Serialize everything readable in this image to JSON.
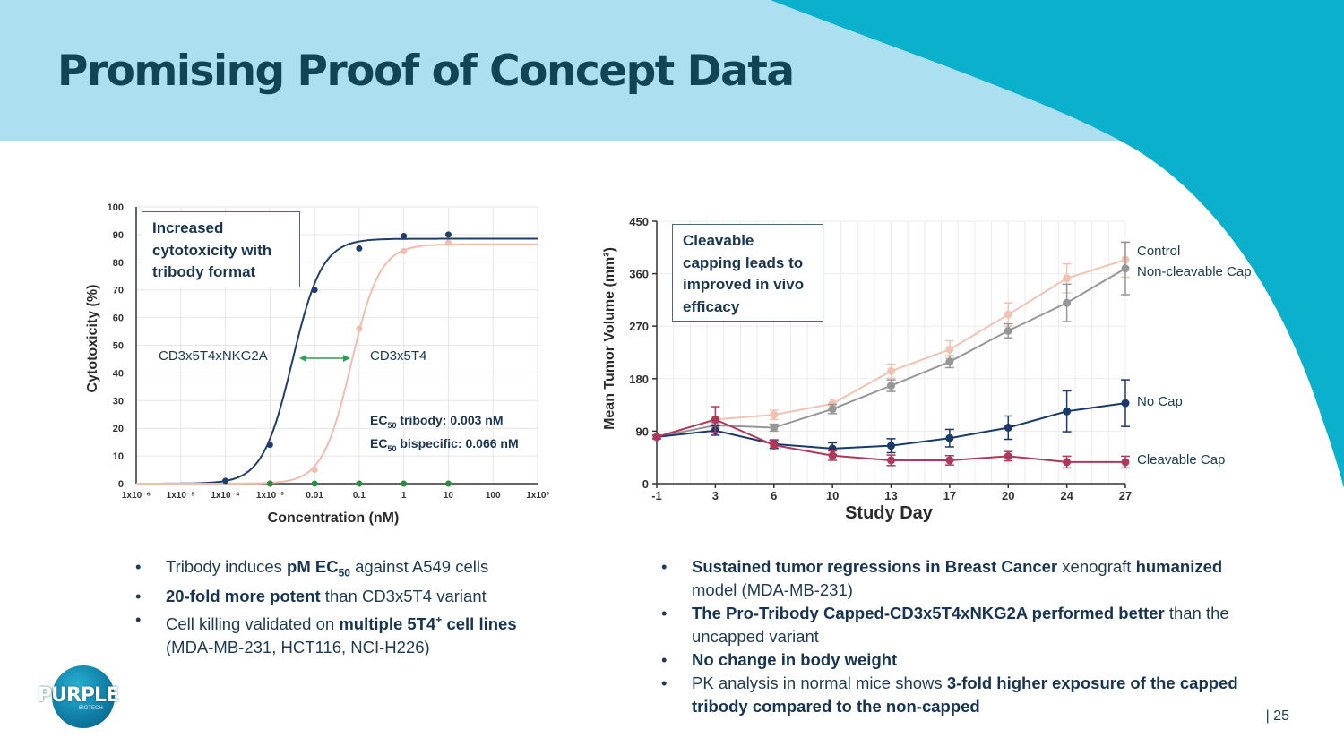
{
  "slide": {
    "title": "Promising Proof of Concept Data",
    "page_number": "| 25",
    "logo": {
      "text": "PURPLE",
      "subtext": "BIOTECH"
    },
    "colors": {
      "banner": "#acdff0",
      "accent_teal": "#0ab0cc",
      "title": "#0f4554"
    }
  },
  "left_panel": {
    "callout": [
      "Increased",
      "cytotoxicity with",
      "tribody format"
    ],
    "curve_labels": {
      "tribody": "CD3x5T4xNKG2A",
      "bispecific": "CD3x5T4"
    },
    "ec50": {
      "sub": "50",
      "tribody": "tribody: 0.003 nM",
      "bispecific": "bispecific: 0.066 nM",
      "prefix": "EC"
    },
    "bullets": [
      {
        "a": "Tribody induces ",
        "b": "pM EC",
        "c": "50",
        "d": " against A549 cells"
      },
      {
        "a": "20-fold more potent",
        "b": " than CD3x5T4 variant"
      },
      {
        "a": "Cell killing validated on ",
        "b": "multiple 5T4",
        "c": "+",
        "d": " cell lines",
        "e": "(MDA-MB-231, HCT116, NCI-H226)"
      }
    ]
  },
  "right_panel": {
    "callout": [
      "Cleavable",
      "capping leads to",
      "improved in vivo",
      "efficacy"
    ],
    "legend": {
      "control": "Control",
      "noncleavable": "Non-cleavable Cap",
      "nocap": "No Cap",
      "cleavable": "Cleavable Cap"
    },
    "bullets": [
      {
        "a": "Sustained tumor regressions in Breast Cancer",
        "b": " xenograft ",
        "c": "humanized",
        "d": "model (MDA-MB-231)"
      },
      {
        "a": "The Pro-Tribody Capped-CD3x5T4xNKG2A performed better",
        "b": " than the",
        "c": "uncapped variant"
      },
      {
        "a": "No change in body weight"
      },
      {
        "a": "PK analysis in normal mice shows ",
        "b": "3-fold higher exposure of the capped",
        "c": "tribody compared to the non-capped"
      }
    ]
  },
  "chart_data": [
    {
      "type": "scatter",
      "title": "",
      "xlabel": "Concentration (nM)",
      "ylabel": "Cytotoxicity (%)",
      "x_scale": "log",
      "xlim_log10": [
        -6,
        3
      ],
      "ylim": [
        0,
        100
      ],
      "x_ticks": [
        {
          "log": -6,
          "label": "1x10⁻⁶"
        },
        {
          "log": -5,
          "label": "1x10⁻⁵"
        },
        {
          "log": -4,
          "label": "1x10⁻⁴"
        },
        {
          "log": -3,
          "label": "1x10⁻³"
        },
        {
          "log": -2,
          "label": "0.01"
        },
        {
          "log": -1,
          "label": "0.1"
        },
        {
          "log": 0,
          "label": "1"
        },
        {
          "log": 1,
          "label": "10"
        },
        {
          "log": 2,
          "label": "100"
        },
        {
          "log": 3,
          "label": "1x10³"
        }
      ],
      "y_ticks": [
        0,
        10,
        20,
        30,
        40,
        50,
        60,
        70,
        80,
        90,
        100
      ],
      "series": [
        {
          "name": "CD3x5T4xNKG2A",
          "color": "#1f3f6a",
          "x_log": [
            -4,
            -3,
            -2,
            -1,
            0,
            1
          ],
          "values": [
            1,
            14,
            70,
            85,
            89.5,
            90
          ],
          "fit": {
            "bottom": 0,
            "top": 88.5,
            "log_ec50": -2.5,
            "hill": 1.3
          }
        },
        {
          "name": "CD3x5T4",
          "color": "#f0bcae",
          "x_log": [
            -3,
            -2,
            -1,
            0,
            1
          ],
          "values": [
            0,
            5,
            56,
            84,
            87
          ],
          "fit": {
            "bottom": 0,
            "top": 86.5,
            "log_ec50": -1.18,
            "hill": 1.35
          }
        },
        {
          "name": "Control",
          "color": "#2e8b3e",
          "x_log": [
            -3,
            -2,
            -1,
            0,
            1
          ],
          "values": [
            0,
            0,
            0,
            0,
            0
          ]
        }
      ]
    },
    {
      "type": "line",
      "title": "",
      "xlabel": "Study Day",
      "ylabel": "Mean Tumor Volume (mm³)",
      "categories": [
        "-1",
        "3",
        "6",
        "10",
        "13",
        "17",
        "20",
        "24",
        "27"
      ],
      "ylim": [
        0,
        450
      ],
      "y_ticks": [
        0,
        90,
        180,
        270,
        360,
        450
      ],
      "series": [
        {
          "name": "Control",
          "color": "#f2c2b2",
          "values": [
            80,
            110,
            118,
            137,
            193,
            230,
            290,
            352,
            384
          ],
          "err": [
            3,
            5,
            8,
            8,
            12,
            15,
            20,
            25,
            30
          ]
        },
        {
          "name": "Non-cleavable Cap",
          "color": "#979797",
          "values": [
            80,
            100,
            96,
            128,
            168,
            209,
            262,
            310,
            369
          ],
          "err": [
            3,
            5,
            6,
            8,
            10,
            10,
            12,
            32,
            45
          ]
        },
        {
          "name": "No Cap",
          "color": "#1a3a6a",
          "values": [
            80,
            91,
            68,
            60,
            65,
            78,
            96,
            124,
            138
          ],
          "err": [
            3,
            8,
            7,
            10,
            12,
            15,
            20,
            35,
            40
          ]
        },
        {
          "name": "Cleavable Cap",
          "color": "#b0385c",
          "values": [
            80,
            110,
            66,
            48,
            40,
            40,
            47,
            37,
            37
          ],
          "err": [
            3,
            22,
            8,
            8,
            9,
            8,
            8,
            10,
            10
          ]
        }
      ]
    }
  ]
}
